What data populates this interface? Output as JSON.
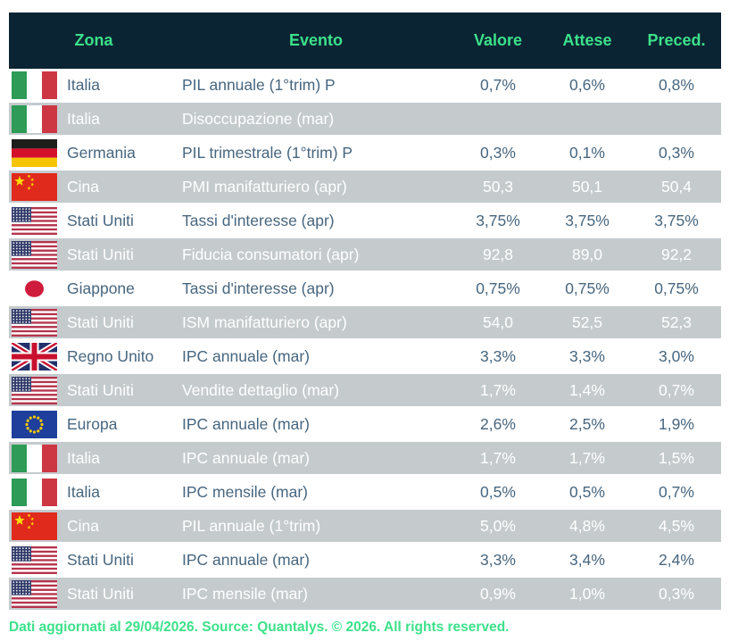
{
  "colors": {
    "header_bg": "#0a2433",
    "accent_green": "#3ce18a",
    "row_alt_bg": "#c5cacd",
    "row_text": "#47667f"
  },
  "table": {
    "columns": {
      "zona": "Zona",
      "evento": "Evento",
      "valore": "Valore",
      "attese": "Attese",
      "preced": "Preced."
    },
    "rows": [
      {
        "flag": "it",
        "zona": "Italia",
        "evento": "PIL annuale (1°trim) P",
        "valore": "0,7%",
        "attese": "0,6%",
        "preced": "0,8%"
      },
      {
        "flag": "it",
        "zona": "Italia",
        "evento": "Disoccupazione (mar)",
        "valore": "",
        "attese": "",
        "preced": ""
      },
      {
        "flag": "de",
        "zona": "Germania",
        "evento": "PIL trimestrale (1°trim) P",
        "valore": "0,3%",
        "attese": "0,1%",
        "preced": "0,3%"
      },
      {
        "flag": "cn",
        "zona": "Cina",
        "evento": "PMI manifatturiero (apr)",
        "valore": "50,3",
        "attese": "50,1",
        "preced": "50,4"
      },
      {
        "flag": "us",
        "zona": "Stati Uniti",
        "evento": "Tassi d'interesse (apr)",
        "valore": "3,75%",
        "attese": "3,75%",
        "preced": "3,75%"
      },
      {
        "flag": "us",
        "zona": "Stati Uniti",
        "evento": "Fiducia consumatori (apr)",
        "valore": "92,8",
        "attese": "89,0",
        "preced": "92,2"
      },
      {
        "flag": "jp",
        "zona": "Giappone",
        "evento": "Tassi d'interesse (apr)",
        "valore": "0,75%",
        "attese": "0,75%",
        "preced": "0,75%"
      },
      {
        "flag": "us",
        "zona": "Stati Uniti",
        "evento": "ISM manifatturiero (apr)",
        "valore": "54,0",
        "attese": "52,5",
        "preced": "52,3"
      },
      {
        "flag": "gb",
        "zona": "Regno Unito",
        "evento": "IPC annuale (mar)",
        "valore": "3,3%",
        "attese": "3,3%",
        "preced": "3,0%"
      },
      {
        "flag": "us",
        "zona": "Stati Uniti",
        "evento": "Vendite dettaglio (mar)",
        "valore": "1,7%",
        "attese": "1,4%",
        "preced": "0,7%"
      },
      {
        "flag": "eu",
        "zona": "Europa",
        "evento": "IPC annuale (mar)",
        "valore": "2,6%",
        "attese": "2,5%",
        "preced": "1,9%"
      },
      {
        "flag": "it",
        "zona": "Italia",
        "evento": "IPC annuale (mar)",
        "valore": "1,7%",
        "attese": "1,7%",
        "preced": "1,5%"
      },
      {
        "flag": "it",
        "zona": "Italia",
        "evento": "IPC mensile (mar)",
        "valore": "0,5%",
        "attese": "0,5%",
        "preced": "0,7%"
      },
      {
        "flag": "cn",
        "zona": "Cina",
        "evento": "PIL annuale (1°trim)",
        "valore": "5,0%",
        "attese": "4,8%",
        "preced": "4,5%"
      },
      {
        "flag": "us",
        "zona": "Stati Uniti",
        "evento": "IPC annuale (mar)",
        "valore": "3,3%",
        "attese": "3,4%",
        "preced": "2,4%"
      },
      {
        "flag": "us",
        "zona": "Stati Uniti",
        "evento": "IPC mensile (mar)",
        "valore": "0,9%",
        "attese": "1,0%",
        "preced": "0,3%"
      }
    ]
  },
  "footer": {
    "text": "Dati aggiornati al 29/04/2026. Source: Quantalys. © 2026. All rights reserved."
  }
}
